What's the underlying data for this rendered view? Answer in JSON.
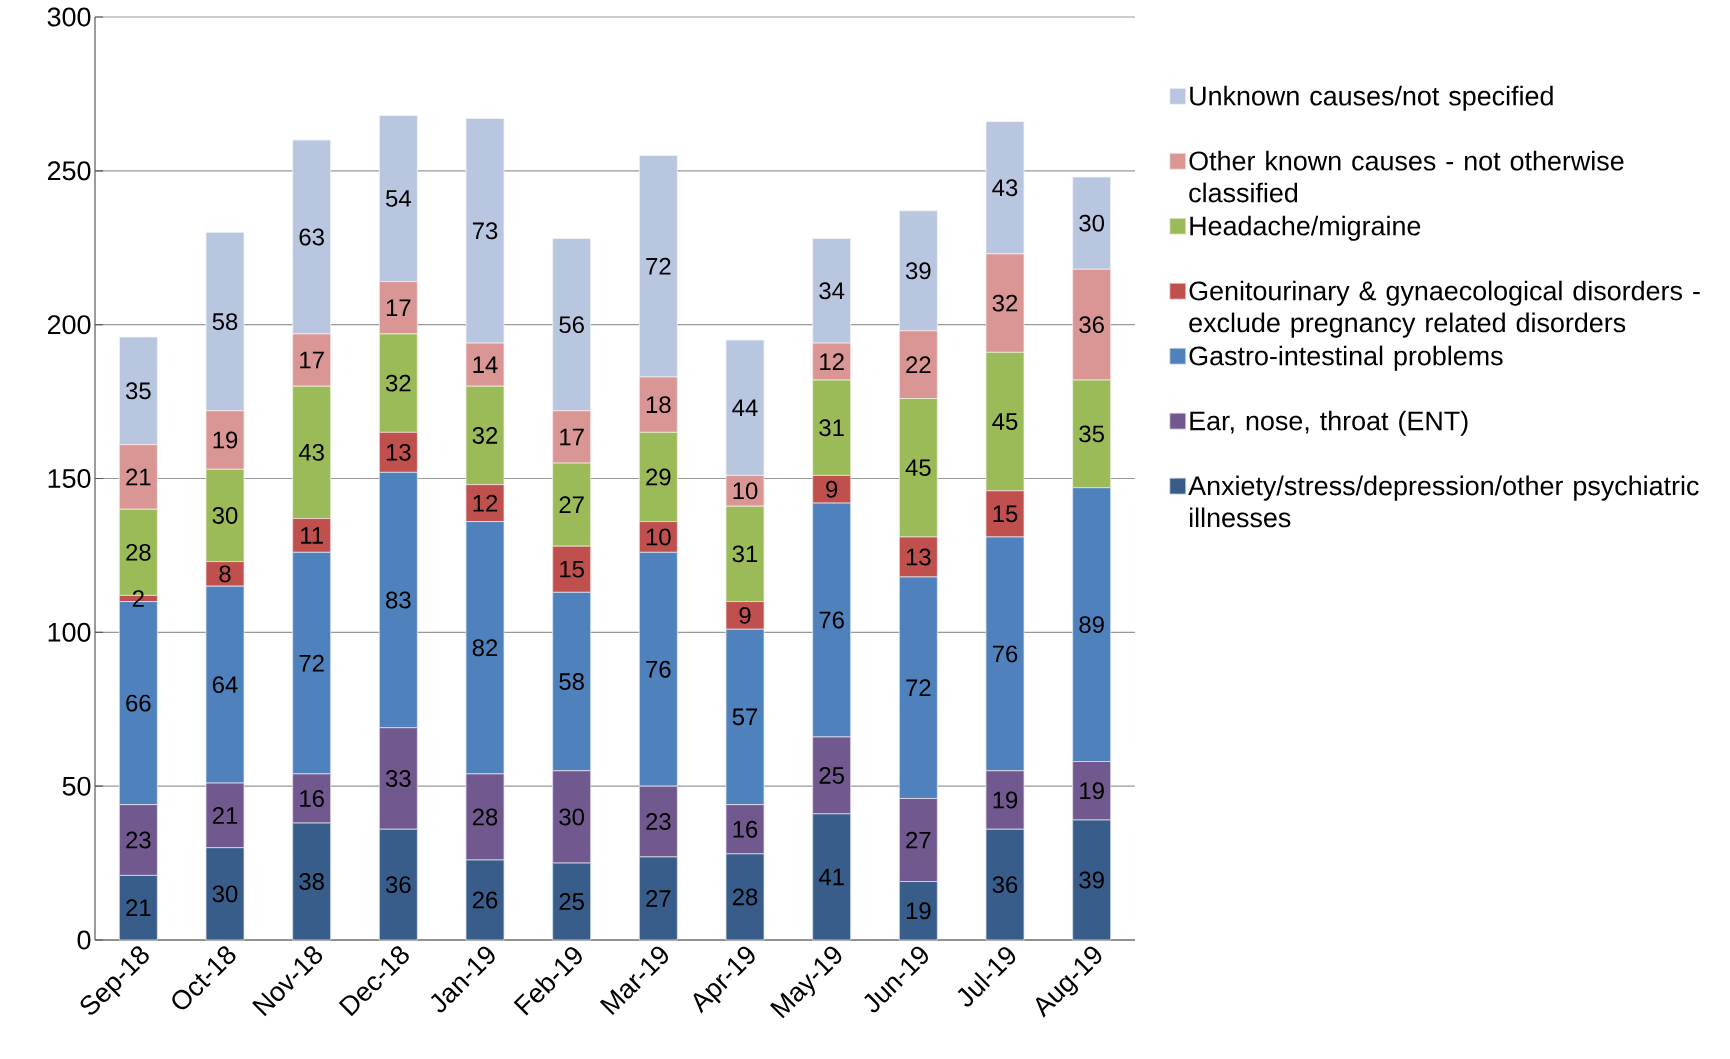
{
  "chart_data": {
    "type": "bar",
    "stacked": true,
    "categories": [
      "Sep-18",
      "Oct-18",
      "Nov-18",
      "Dec-18",
      "Jan-19",
      "Feb-19",
      "Mar-19",
      "Apr-19",
      "May-19",
      "Jun-19",
      "Jul-19",
      "Aug-19"
    ],
    "series": [
      {
        "name": "Anxiety/stress/depression/other psychiatric illnesses",
        "color": "#385d8a",
        "values": [
          21,
          30,
          38,
          36,
          26,
          25,
          27,
          28,
          41,
          19,
          36,
          39
        ]
      },
      {
        "name": "Ear, nose, throat (ENT)",
        "color": "#71588f",
        "values": [
          23,
          21,
          16,
          33,
          28,
          30,
          23,
          16,
          25,
          27,
          19,
          19
        ]
      },
      {
        "name": "Gastro-intestinal problems",
        "color": "#4f81bd",
        "values": [
          66,
          64,
          72,
          83,
          82,
          58,
          76,
          57,
          76,
          72,
          76,
          89
        ]
      },
      {
        "name": "Genitourinary & gynaecological disorders - exclude pregnancy related disorders",
        "color": "#c0504d",
        "values": [
          2,
          8,
          11,
          13,
          12,
          15,
          10,
          9,
          9,
          13,
          15,
          null
        ]
      },
      {
        "name": "Headache/migraine",
        "color": "#9bbb59",
        "values": [
          28,
          30,
          43,
          32,
          32,
          27,
          29,
          31,
          31,
          45,
          45,
          35
        ]
      },
      {
        "name": "Other known causes - not otherwise classified",
        "color": "#d99694",
        "values": [
          21,
          19,
          17,
          17,
          14,
          17,
          18,
          10,
          12,
          22,
          32,
          36
        ]
      },
      {
        "name": "Unknown causes/not specified",
        "color": "#b9c6e0",
        "values": [
          35,
          58,
          63,
          54,
          73,
          56,
          72,
          44,
          34,
          39,
          43,
          30
        ]
      }
    ],
    "ylim": [
      0,
      300
    ],
    "yticks": [
      0,
      50,
      100,
      150,
      200,
      250,
      300
    ],
    "grid": "y",
    "legend": "right",
    "data_labels": true
  }
}
